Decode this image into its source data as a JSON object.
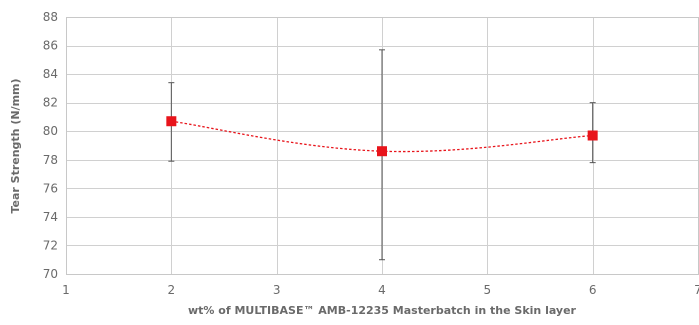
{
  "chart_data": {
    "type": "scatter",
    "xlabel": "wt% of MULTIBASE™ AMB-12235 Masterbatch in the Skin layer",
    "ylabel": "Tear Strength (N/mm)",
    "xlim": [
      1,
      7
    ],
    "ylim": [
      70,
      88
    ],
    "x_ticks": [
      "1",
      "2",
      "3",
      "4",
      "5",
      "6",
      "7"
    ],
    "y_ticks": [
      "70",
      "72",
      "74",
      "76",
      "78",
      "80",
      "82",
      "84",
      "86",
      "88"
    ],
    "grid": true,
    "legend": "none",
    "line_style": "dotted smoothed",
    "series": [
      {
        "color": "#e8141b",
        "points": [
          {
            "x": 2,
            "y": 80.7,
            "err_low": 77.9,
            "err_high": 83.4
          },
          {
            "x": 4,
            "y": 78.6,
            "err_low": 71.0,
            "err_high": 85.7
          },
          {
            "x": 6,
            "y": 79.7,
            "err_low": 77.8,
            "err_high": 82.0
          }
        ]
      }
    ]
  }
}
